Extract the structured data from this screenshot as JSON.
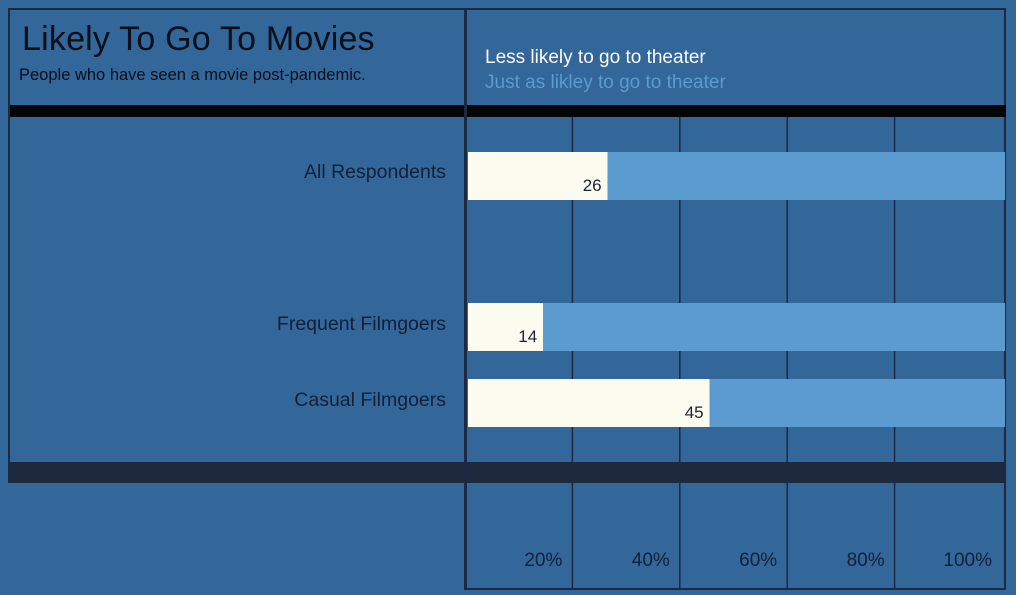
{
  "colors": {
    "background": "#336699",
    "less_likely": "#fcfbf0",
    "just_as_likely": "#5b9bd0",
    "grid": "#1b2a40",
    "frame": "#1b2a40"
  },
  "chart_data": {
    "type": "bar",
    "orientation": "horizontal",
    "stacked": true,
    "title": "Likely To Go To Movies",
    "subtitle": "People who have seen a movie post-pandemic.",
    "categories": [
      "All Respondents",
      "Frequent Filmgoers",
      "Casual Filmgoers"
    ],
    "series": [
      {
        "name": "Less likely to go to theater",
        "values": [
          26,
          14,
          45
        ]
      },
      {
        "name": "Just as likley to go to theater",
        "values": [
          74,
          86,
          55
        ]
      }
    ],
    "data_labels": [
      "26",
      "14",
      "45"
    ],
    "xlim": [
      0,
      100
    ],
    "xticks": [
      20,
      40,
      60,
      80,
      100
    ],
    "xtick_labels": [
      "20%",
      "40%",
      "60%",
      "80%",
      "100%"
    ],
    "grid": true,
    "legend_position": "top"
  }
}
